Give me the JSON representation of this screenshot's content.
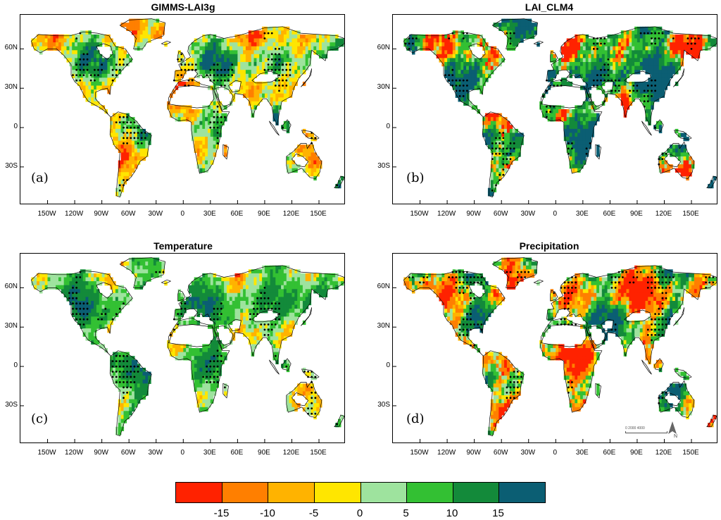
{
  "panels": [
    {
      "id": "a",
      "title": "GIMMS-LAI3g",
      "tag": "(a)",
      "seed": 11,
      "weights": [
        0.04,
        0.08,
        0.16,
        0.22,
        0.2,
        0.14,
        0.1,
        0.06
      ]
    },
    {
      "id": "b",
      "title": "LAI_CLM4",
      "tag": "(b)",
      "seed": 23,
      "weights": [
        0.1,
        0.05,
        0.04,
        0.03,
        0.06,
        0.22,
        0.22,
        0.28
      ]
    },
    {
      "id": "c",
      "title": "Temperature",
      "tag": "(c)",
      "seed": 37,
      "weights": [
        0.01,
        0.02,
        0.06,
        0.08,
        0.22,
        0.32,
        0.24,
        0.05
      ]
    },
    {
      "id": "d",
      "title": "Precipitation",
      "tag": "(d)",
      "seed": 53,
      "weights": [
        0.14,
        0.16,
        0.12,
        0.06,
        0.08,
        0.18,
        0.16,
        0.1
      ]
    }
  ],
  "lat_labels": [
    "60N",
    "30N",
    "0",
    "30S"
  ],
  "lon_labels": [
    "150W",
    "120W",
    "90W",
    "60W",
    "30W",
    "0",
    "30E",
    "60E",
    "90E",
    "120E",
    "150E"
  ],
  "colorbar": {
    "colors": [
      "#ff2200",
      "#ff7f00",
      "#ffb300",
      "#ffe600",
      "#9ee39e",
      "#33c033",
      "#138a3a",
      "#0b5e73"
    ],
    "labels": [
      "-15",
      "-10",
      "-5",
      "0",
      "5",
      "10",
      "15"
    ]
  },
  "scale_bar_caption": "0   2000   4000"
}
